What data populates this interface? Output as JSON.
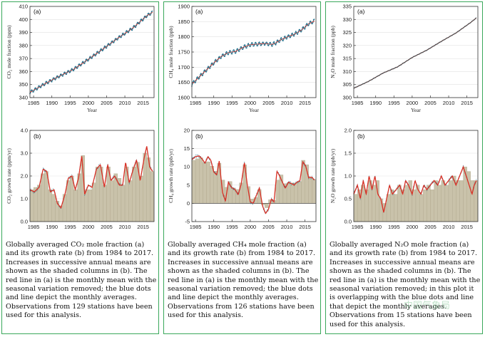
{
  "colors": {
    "border": "#3aa85b",
    "trend": "#d93025",
    "monthly": "#1f6f8b",
    "shade": "#c9c2aa",
    "shade_edge": "#a89f84"
  },
  "panels": [
    {
      "caption": "Globally averaged CO₂ mole fraction (a) and its growth rate (b) from 1984 to 2017. Increases in successive annual means are shown as the shaded columns in (b). The red line in (a) is the monthly mean with the seasonal variation removed; the blue dots and line depict the monthly averages. Observations from 129 stations have been used for this analysis."
    },
    {
      "caption": "Globally averaged CH₄ mole fraction (a) and its growth rate (b) from 1984 to 2017. Increases in successive annual means are shown as the shaded columns in (b). The red line in (a) is the monthly mean with the seasonal variation removed; the blue dots and line depict the monthly averages. Observations from 126 stations have been used for this analysis."
    },
    {
      "caption": "Globally averaged N₂O mole fraction (a) and its growth rate (b) from 1984 to 2017. Increases in successive annual means are shown as the shaded columns in (b). The red line in (a) is the monthly mean with the seasonal variation removed; in this plot it is overlapping with the blue dots and line that depict the monthly averages. Observations from 15 stations have been used for this analysis."
    }
  ],
  "watermark": "中国气象局",
  "chart_data": [
    {
      "panel": "(a)",
      "type": "line",
      "ylabel": "CO₂ mole fraction (ppm)",
      "xlabel": "Year",
      "xlim": [
        1984,
        2018
      ],
      "ylim": [
        340,
        410
      ],
      "xticks": [
        1985,
        1990,
        1995,
        2000,
        2005,
        2010,
        2015
      ],
      "yticks": [
        340,
        350,
        360,
        370,
        380,
        390,
        400,
        410
      ],
      "knots": [
        [
          1984,
          344.0
        ],
        [
          1988,
          350.5
        ],
        [
          1992,
          356.4
        ],
        [
          1996,
          361.8
        ],
        [
          2000,
          369.4
        ],
        [
          2004,
          377.3
        ],
        [
          2008,
          385.5
        ],
        [
          2012,
          393.0
        ],
        [
          2016,
          402.8
        ],
        [
          2017.6,
          405.5
        ]
      ],
      "seasonal_amplitude": 1.2,
      "monthly_dots": true
    },
    {
      "panel": "(b)",
      "type": "area",
      "ylabel": "CO₂ growth rate (ppm/yr)",
      "xlabel": "",
      "xlim": [
        1984,
        2018
      ],
      "ylim": [
        0,
        4
      ],
      "xticks": [
        1985,
        1990,
        1995,
        2000,
        2005,
        2010,
        2015
      ],
      "yticks": [
        "0.0",
        "1.0",
        "2.0",
        "3.0",
        "4.0"
      ],
      "annual_x": [
        1984,
        1985,
        1986,
        1987,
        1988,
        1989,
        1990,
        1991,
        1992,
        1993,
        1994,
        1995,
        1996,
        1997,
        1998,
        1999,
        2000,
        2001,
        2002,
        2003,
        2004,
        2005,
        2006,
        2007,
        2008,
        2009,
        2010,
        2011,
        2012,
        2013,
        2014,
        2015,
        2016,
        2017
      ],
      "annual": [
        1.4,
        1.5,
        1.6,
        2.1,
        2.2,
        1.4,
        1.2,
        0.9,
        0.7,
        1.2,
        1.8,
        2.0,
        1.4,
        2.1,
        2.9,
        1.4,
        1.4,
        1.7,
        2.4,
        2.4,
        1.6,
        2.4,
        1.8,
        2.1,
        1.9,
        1.6,
        2.4,
        1.8,
        2.4,
        2.6,
        2.0,
        3.0,
        2.8,
        2.2
      ],
      "trend_knots": [
        [
          1984,
          1.4
        ],
        [
          1985.2,
          1.3
        ],
        [
          1986.5,
          1.5
        ],
        [
          1987.6,
          2.3
        ],
        [
          1988.6,
          2.2
        ],
        [
          1989.6,
          1.3
        ],
        [
          1990.6,
          1.4
        ],
        [
          1991.5,
          0.8
        ],
        [
          1992.5,
          0.6
        ],
        [
          1993.6,
          1.2
        ],
        [
          1994.5,
          1.9
        ],
        [
          1995.5,
          2.0
        ],
        [
          1996.4,
          1.4
        ],
        [
          1997.3,
          1.9
        ],
        [
          1998.2,
          2.9
        ],
        [
          1999.0,
          1.2
        ],
        [
          2000.0,
          1.6
        ],
        [
          2001.0,
          1.5
        ],
        [
          2002.2,
          2.3
        ],
        [
          2003.3,
          2.5
        ],
        [
          2004.4,
          1.5
        ],
        [
          2005.3,
          2.5
        ],
        [
          2006.2,
          1.8
        ],
        [
          2007.2,
          2.0
        ],
        [
          2008.5,
          1.6
        ],
        [
          2009.4,
          1.6
        ],
        [
          2010.2,
          2.6
        ],
        [
          2011.2,
          1.7
        ],
        [
          2012.3,
          2.3
        ],
        [
          2013.2,
          2.7
        ],
        [
          2014.2,
          1.8
        ],
        [
          2015.3,
          2.8
        ],
        [
          2016.0,
          3.3
        ],
        [
          2016.8,
          2.4
        ],
        [
          2017.6,
          2.2
        ]
      ]
    },
    {
      "panel": "(a)",
      "type": "line",
      "ylabel": "CH₄ mole fraction (ppb)",
      "xlabel": "Year",
      "xlim": [
        1984,
        2018
      ],
      "ylim": [
        1600,
        1900
      ],
      "xticks": [
        1985,
        1990,
        1995,
        2000,
        2005,
        2010,
        2015
      ],
      "yticks": [
        1600,
        1650,
        1700,
        1750,
        1800,
        1850,
        1900
      ],
      "knots": [
        [
          1984,
          1644
        ],
        [
          1986,
          1668
        ],
        [
          1988,
          1691
        ],
        [
          1990,
          1714
        ],
        [
          1992,
          1735
        ],
        [
          1994,
          1748
        ],
        [
          1996,
          1752
        ],
        [
          1998,
          1765
        ],
        [
          2000,
          1774
        ],
        [
          2002,
          1776
        ],
        [
          2004,
          1778
        ],
        [
          2006,
          1775
        ],
        [
          2007,
          1780
        ],
        [
          2008,
          1788
        ],
        [
          2010,
          1799
        ],
        [
          2012,
          1808
        ],
        [
          2014,
          1822
        ],
        [
          2016,
          1843
        ],
        [
          2017.6,
          1852
        ]
      ],
      "seasonal_amplitude": 6,
      "monthly_dots": true
    },
    {
      "panel": "(b)",
      "type": "area",
      "ylabel": "CH₄ growth rate (ppb/yr)",
      "xlabel": "",
      "xlim": [
        1984,
        2018
      ],
      "ylim": [
        -5,
        20
      ],
      "xticks": [
        1985,
        1990,
        1995,
        2000,
        2005,
        2010,
        2015
      ],
      "yticks": [
        -5,
        0,
        5,
        10,
        15,
        20
      ],
      "annual_x": [
        1984,
        1985,
        1986,
        1987,
        1988,
        1989,
        1990,
        1991,
        1992,
        1993,
        1994,
        1995,
        1996,
        1997,
        1998,
        1999,
        2000,
        2001,
        2002,
        2003,
        2004,
        2005,
        2006,
        2007,
        2008,
        2009,
        2010,
        2011,
        2012,
        2013,
        2014,
        2015,
        2016,
        2017
      ],
      "annual": [
        11.8,
        12.2,
        12.5,
        11.2,
        11.4,
        10.2,
        8.8,
        11.0,
        6.4,
        4.4,
        6.0,
        4.2,
        3.8,
        5.6,
        10.6,
        4.6,
        1.2,
        1.6,
        3.8,
        -0.4,
        -1.2,
        1.0,
        0.8,
        6.4,
        7.8,
        5.4,
        5.6,
        5.6,
        5.6,
        6.0,
        11.8,
        10.6,
        7.0,
        6.6
      ],
      "trend_knots": [
        [
          1984,
          12.0
        ],
        [
          1985.0,
          12.8
        ],
        [
          1986.0,
          13.0
        ],
        [
          1986.8,
          12.2
        ],
        [
          1987.6,
          11.0
        ],
        [
          1988.4,
          12.8
        ],
        [
          1989.2,
          11.8
        ],
        [
          1990.0,
          8.6
        ],
        [
          1990.8,
          7.8
        ],
        [
          1991.5,
          11.6
        ],
        [
          1992.4,
          3.0
        ],
        [
          1993.2,
          0.6
        ],
        [
          1994.0,
          5.8
        ],
        [
          1994.8,
          4.4
        ],
        [
          1995.8,
          3.8
        ],
        [
          1996.7,
          2.4
        ],
        [
          1997.5,
          5.2
        ],
        [
          1998.4,
          11.2
        ],
        [
          1999.2,
          5.0
        ],
        [
          2000.0,
          0.4
        ],
        [
          2000.8,
          0.0
        ],
        [
          2001.6,
          2.0
        ],
        [
          2002.5,
          4.2
        ],
        [
          2003.4,
          -0.8
        ],
        [
          2004.2,
          -2.8
        ],
        [
          2005.0,
          -1.6
        ],
        [
          2005.8,
          1.2
        ],
        [
          2006.5,
          0.4
        ],
        [
          2007.3,
          8.8
        ],
        [
          2008.0,
          7.6
        ],
        [
          2008.8,
          5.8
        ],
        [
          2009.6,
          4.2
        ],
        [
          2010.5,
          5.8
        ],
        [
          2011.3,
          5.4
        ],
        [
          2012.0,
          5.0
        ],
        [
          2012.8,
          5.8
        ],
        [
          2013.6,
          6.2
        ],
        [
          2014.4,
          11.4
        ],
        [
          2015.2,
          10.2
        ],
        [
          2016.0,
          7.0
        ],
        [
          2016.8,
          7.2
        ],
        [
          2017.6,
          6.4
        ]
      ]
    },
    {
      "panel": "(a)",
      "type": "line",
      "ylabel": "N₂O mole fraction (ppb)",
      "xlabel": "Year",
      "xlim": [
        1984,
        2018
      ],
      "ylim": [
        300,
        335
      ],
      "xticks": [
        1985,
        1990,
        1995,
        2000,
        2005,
        2010,
        2015
      ],
      "yticks": [
        300,
        305,
        310,
        315,
        320,
        325,
        330,
        335
      ],
      "knots": [
        [
          1984,
          303.6
        ],
        [
          1988,
          306.2
        ],
        [
          1992,
          309.4
        ],
        [
          1996,
          311.8
        ],
        [
          2000,
          315.4
        ],
        [
          2004,
          318.2
        ],
        [
          2008,
          321.6
        ],
        [
          2012,
          324.8
        ],
        [
          2016,
          328.8
        ],
        [
          2017.6,
          330.6
        ]
      ],
      "seasonal_amplitude": 0.15,
      "monthly_dots": false
    },
    {
      "panel": "(b)",
      "type": "area",
      "ylabel": "N₂O growth rate (ppb/yr)",
      "xlabel": "",
      "xlim": [
        1984,
        2018
      ],
      "ylim": [
        0,
        2
      ],
      "xticks": [
        1985,
        1990,
        1995,
        2000,
        2005,
        2010,
        2015
      ],
      "yticks": [
        "0.0",
        "0.5",
        "1.0",
        "1.5",
        "2.0"
      ],
      "annual_x": [
        1984,
        1985,
        1986,
        1987,
        1988,
        1989,
        1990,
        1991,
        1992,
        1993,
        1994,
        1995,
        1996,
        1997,
        1998,
        1999,
        2000,
        2001,
        2002,
        2003,
        2004,
        2005,
        2006,
        2007,
        2008,
        2009,
        2010,
        2011,
        2012,
        2013,
        2014,
        2015,
        2016,
        2017
      ],
      "annual": [
        0.6,
        0.7,
        0.8,
        0.7,
        0.9,
        0.8,
        0.9,
        0.5,
        0.4,
        0.6,
        0.7,
        0.6,
        0.8,
        0.7,
        0.8,
        0.9,
        0.7,
        0.8,
        0.6,
        0.7,
        0.8,
        0.7,
        0.9,
        0.8,
        0.9,
        0.8,
        0.9,
        1.0,
        0.9,
        0.9,
        1.2,
        1.1,
        0.9,
        0.9
      ],
      "trend_knots": [
        [
          1984,
          0.6
        ],
        [
          1985.0,
          0.8
        ],
        [
          1985.8,
          0.5
        ],
        [
          1986.6,
          0.9
        ],
        [
          1987.4,
          0.6
        ],
        [
          1988.2,
          1.0
        ],
        [
          1989.0,
          0.7
        ],
        [
          1989.8,
          1.0
        ],
        [
          1990.6,
          0.6
        ],
        [
          1991.4,
          0.5
        ],
        [
          1992.2,
          0.2
        ],
        [
          1993.0,
          0.5
        ],
        [
          1993.8,
          0.8
        ],
        [
          1994.6,
          0.6
        ],
        [
          1995.6,
          0.7
        ],
        [
          1996.6,
          0.8
        ],
        [
          1997.4,
          0.6
        ],
        [
          1998.2,
          0.9
        ],
        [
          1999.0,
          0.8
        ],
        [
          2000.0,
          0.6
        ],
        [
          2000.8,
          0.9
        ],
        [
          2001.6,
          0.7
        ],
        [
          2002.4,
          0.6
        ],
        [
          2003.2,
          0.8
        ],
        [
          2004.0,
          0.7
        ],
        [
          2005.0,
          0.8
        ],
        [
          2006.0,
          0.9
        ],
        [
          2007.0,
          0.8
        ],
        [
          2008.0,
          1.0
        ],
        [
          2009.0,
          0.8
        ],
        [
          2010.0,
          0.9
        ],
        [
          2011.0,
          1.0
        ],
        [
          2012.0,
          0.8
        ],
        [
          2013.0,
          1.0
        ],
        [
          2014.0,
          1.2
        ],
        [
          2014.8,
          1.0
        ],
        [
          2015.6,
          0.8
        ],
        [
          2016.4,
          0.6
        ],
        [
          2017.0,
          0.8
        ],
        [
          2017.6,
          0.9
        ]
      ]
    }
  ]
}
